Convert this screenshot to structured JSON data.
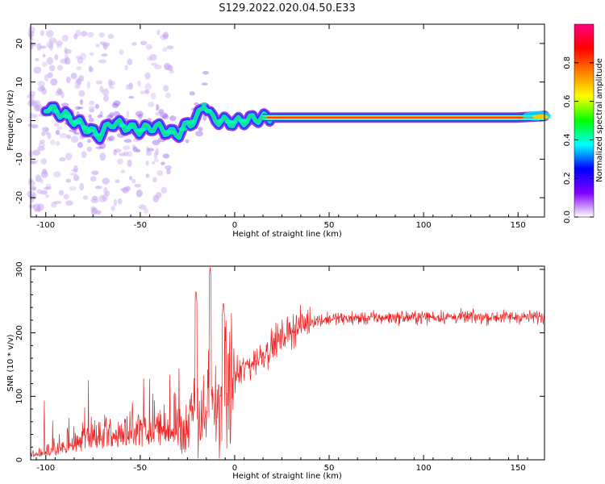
{
  "figure_title": "S129.2022.020.04.50.E33",
  "chart_data": [
    {
      "type": "heatmap",
      "title": "S129.2022.020.04.50.E33",
      "xlabel": "Height of straight line (km)",
      "ylabel": "Frequency (Hz)",
      "xlim": [
        -108,
        164
      ],
      "ylim": [
        -25,
        25
      ],
      "xticks": [
        -100,
        -50,
        0,
        50,
        100,
        150
      ],
      "yticks": [
        -20,
        -10,
        0,
        10,
        20
      ],
      "colorbar": {
        "label": "Normalized spectral amplitude",
        "range": [
          0,
          1
        ],
        "ticks": [
          0.0,
          0.2,
          0.4,
          0.6,
          0.8
        ],
        "colormap": [
          "#ffffff",
          "#8000ff",
          "#0000ff",
          "#00ffff",
          "#00ff00",
          "#ffff00",
          "#ff8000",
          "#ff0000",
          "#ff0080"
        ]
      },
      "ridge": {
        "x": [
          -100,
          -90,
          -80,
          -72,
          -65,
          -58,
          -50,
          -42,
          -35,
          -30,
          -25,
          -20,
          -16,
          -12,
          -8,
          0,
          10,
          20,
          50,
          100,
          150,
          164
        ],
        "y": [
          3.5,
          1.5,
          -1.5,
          -4,
          -0.5,
          -1.5,
          -2.5,
          -1.5,
          -3,
          -3.5,
          -1,
          0.5,
          4.5,
          0.5,
          0,
          -0.5,
          0.5,
          0.8,
          0.8,
          0.8,
          0.8,
          1.2
        ]
      }
    },
    {
      "type": "line",
      "xlabel": "Height of straight line (km)",
      "ylabel": "SNR (10 * v/v)",
      "xlim": [
        -108,
        164
      ],
      "ylim": [
        0,
        305
      ],
      "xticks": [
        -100,
        -50,
        0,
        50,
        100,
        150
      ],
      "yticks": [
        0,
        100,
        200,
        300
      ],
      "color": "#ee2222",
      "series_trend": {
        "x": [
          -108,
          -100,
          -90,
          -80,
          -70,
          -60,
          -50,
          -40,
          -30,
          -25,
          -20,
          -15,
          -10,
          -5,
          0,
          10,
          20,
          30,
          40,
          50,
          100,
          150,
          164
        ],
        "y": [
          8,
          10,
          18,
          28,
          35,
          40,
          40,
          42,
          50,
          55,
          70,
          75,
          85,
          105,
          130,
          155,
          180,
          205,
          218,
          222,
          225,
          225,
          225
        ]
      },
      "peaks": {
        "x": [
          -20.5,
          -13,
          -6
        ],
        "y": [
          268,
          305,
          250
        ]
      }
    }
  ]
}
